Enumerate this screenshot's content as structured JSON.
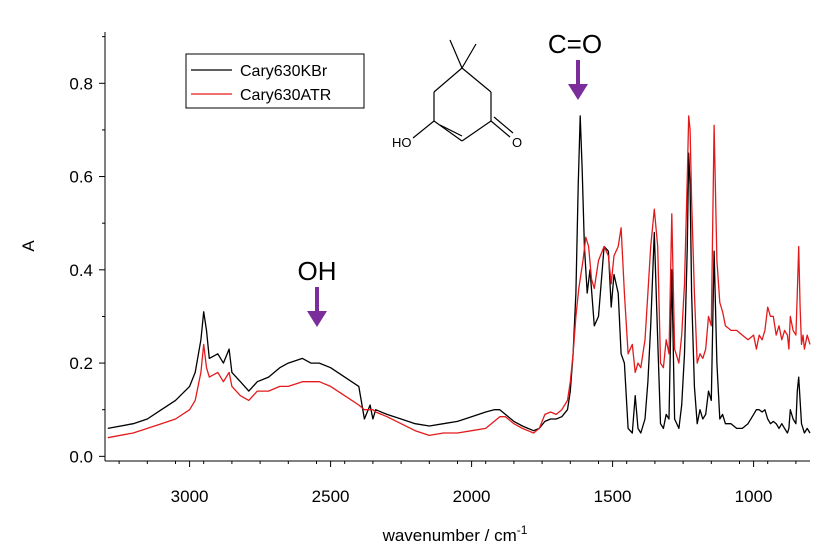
{
  "chart_data": {
    "type": "line",
    "xlabel": "wavenumber / cm",
    "xlabel_superscript": "-1",
    "ylabel": "A",
    "xlim": [
      3300,
      800
    ],
    "ylim": [
      -0.01,
      0.91
    ],
    "x_reversed": true,
    "x_ticks": [
      3000,
      2500,
      2000,
      1500,
      1000
    ],
    "y_ticks": [
      0.0,
      0.2,
      0.4,
      0.6,
      0.8
    ],
    "x_tick_labels": [
      "3000",
      "2500",
      "2000",
      "1500",
      "1000"
    ],
    "y_tick_labels": [
      "0.0",
      "0.2",
      "0.4",
      "0.6",
      "0.8"
    ],
    "grid": false,
    "legend_position": "top-left",
    "series": [
      {
        "name": "Cary630KBr",
        "color": "#000000",
        "x": [
          3290,
          3200,
          3150,
          3100,
          3050,
          3000,
          2980,
          2960,
          2950,
          2940,
          2930,
          2900,
          2880,
          2860,
          2850,
          2820,
          2790,
          2760,
          2720,
          2680,
          2650,
          2600,
          2570,
          2540,
          2500,
          2450,
          2400,
          2380,
          2360,
          2350,
          2340,
          2300,
          2250,
          2200,
          2150,
          2100,
          2050,
          2000,
          1950,
          1920,
          1900,
          1880,
          1850,
          1820,
          1800,
          1780,
          1760,
          1740,
          1720,
          1700,
          1680,
          1660,
          1650,
          1640,
          1630,
          1622,
          1615,
          1608,
          1600,
          1590,
          1580,
          1565,
          1550,
          1530,
          1515,
          1505,
          1495,
          1480,
          1470,
          1458,
          1445,
          1430,
          1420,
          1410,
          1400,
          1385,
          1375,
          1365,
          1352,
          1340,
          1330,
          1320,
          1310,
          1300,
          1290,
          1280,
          1265,
          1255,
          1245,
          1235,
          1230,
          1225,
          1220,
          1210,
          1200,
          1190,
          1180,
          1170,
          1160,
          1150,
          1140,
          1130,
          1120,
          1110,
          1100,
          1080,
          1060,
          1040,
          1020,
          1000,
          990,
          980,
          970,
          960,
          950,
          940,
          930,
          920,
          910,
          900,
          890,
          880,
          875,
          870,
          860,
          850,
          845,
          840,
          835,
          830,
          825,
          820,
          810,
          800
        ],
        "y": [
          0.06,
          0.07,
          0.08,
          0.1,
          0.12,
          0.15,
          0.18,
          0.25,
          0.31,
          0.27,
          0.21,
          0.22,
          0.2,
          0.23,
          0.18,
          0.16,
          0.14,
          0.16,
          0.17,
          0.19,
          0.2,
          0.21,
          0.2,
          0.2,
          0.19,
          0.17,
          0.15,
          0.08,
          0.11,
          0.08,
          0.1,
          0.09,
          0.08,
          0.07,
          0.065,
          0.07,
          0.075,
          0.085,
          0.095,
          0.1,
          0.1,
          0.09,
          0.075,
          0.065,
          0.06,
          0.055,
          0.06,
          0.075,
          0.08,
          0.08,
          0.085,
          0.1,
          0.14,
          0.22,
          0.35,
          0.58,
          0.73,
          0.62,
          0.45,
          0.35,
          0.4,
          0.28,
          0.3,
          0.45,
          0.44,
          0.32,
          0.39,
          0.35,
          0.22,
          0.2,
          0.06,
          0.05,
          0.13,
          0.06,
          0.05,
          0.08,
          0.16,
          0.28,
          0.48,
          0.25,
          0.07,
          0.06,
          0.09,
          0.08,
          0.4,
          0.08,
          0.06,
          0.11,
          0.22,
          0.45,
          0.65,
          0.58,
          0.35,
          0.15,
          0.07,
          0.1,
          0.08,
          0.09,
          0.14,
          0.12,
          0.44,
          0.2,
          0.08,
          0.09,
          0.07,
          0.07,
          0.06,
          0.06,
          0.07,
          0.09,
          0.1,
          0.1,
          0.095,
          0.1,
          0.08,
          0.07,
          0.075,
          0.07,
          0.06,
          0.07,
          0.06,
          0.05,
          0.06,
          0.1,
          0.08,
          0.07,
          0.14,
          0.17,
          0.12,
          0.07,
          0.06,
          0.05,
          0.06,
          0.05
        ]
      },
      {
        "name": "Cary630ATR",
        "color": "#e31a1c",
        "x": [
          3290,
          3200,
          3150,
          3100,
          3050,
          3000,
          2980,
          2960,
          2950,
          2940,
          2930,
          2900,
          2880,
          2860,
          2850,
          2820,
          2790,
          2760,
          2720,
          2680,
          2650,
          2600,
          2570,
          2540,
          2500,
          2450,
          2400,
          2380,
          2360,
          2350,
          2340,
          2300,
          2250,
          2200,
          2150,
          2100,
          2050,
          2000,
          1950,
          1920,
          1900,
          1880,
          1850,
          1820,
          1800,
          1780,
          1760,
          1740,
          1720,
          1700,
          1680,
          1660,
          1650,
          1640,
          1630,
          1620,
          1615,
          1605,
          1595,
          1585,
          1575,
          1565,
          1550,
          1530,
          1515,
          1505,
          1495,
          1480,
          1470,
          1458,
          1445,
          1430,
          1420,
          1410,
          1400,
          1385,
          1375,
          1365,
          1352,
          1340,
          1330,
          1320,
          1310,
          1300,
          1290,
          1280,
          1265,
          1255,
          1245,
          1235,
          1230,
          1225,
          1220,
          1210,
          1200,
          1190,
          1180,
          1170,
          1160,
          1150,
          1140,
          1130,
          1120,
          1110,
          1100,
          1080,
          1060,
          1040,
          1020,
          1000,
          990,
          980,
          970,
          960,
          950,
          940,
          930,
          920,
          910,
          900,
          890,
          880,
          875,
          870,
          860,
          850,
          845,
          840,
          835,
          830,
          825,
          820,
          810,
          800
        ],
        "y": [
          0.04,
          0.05,
          0.06,
          0.07,
          0.08,
          0.1,
          0.12,
          0.18,
          0.24,
          0.19,
          0.17,
          0.18,
          0.16,
          0.18,
          0.15,
          0.13,
          0.12,
          0.14,
          0.14,
          0.15,
          0.15,
          0.16,
          0.16,
          0.16,
          0.15,
          0.13,
          0.11,
          0.1,
          0.1,
          0.1,
          0.095,
          0.085,
          0.07,
          0.055,
          0.045,
          0.05,
          0.05,
          0.055,
          0.06,
          0.075,
          0.085,
          0.085,
          0.07,
          0.06,
          0.055,
          0.05,
          0.06,
          0.09,
          0.095,
          0.09,
          0.1,
          0.12,
          0.16,
          0.22,
          0.3,
          0.36,
          0.38,
          0.42,
          0.47,
          0.45,
          0.38,
          0.36,
          0.42,
          0.45,
          0.43,
          0.37,
          0.43,
          0.45,
          0.49,
          0.35,
          0.22,
          0.24,
          0.18,
          0.2,
          0.19,
          0.25,
          0.35,
          0.45,
          0.53,
          0.45,
          0.2,
          0.19,
          0.25,
          0.22,
          0.52,
          0.23,
          0.2,
          0.26,
          0.37,
          0.6,
          0.73,
          0.7,
          0.55,
          0.35,
          0.2,
          0.22,
          0.21,
          0.23,
          0.3,
          0.28,
          0.71,
          0.42,
          0.33,
          0.31,
          0.28,
          0.27,
          0.27,
          0.26,
          0.25,
          0.26,
          0.23,
          0.26,
          0.25,
          0.27,
          0.32,
          0.3,
          0.3,
          0.26,
          0.28,
          0.25,
          0.27,
          0.26,
          0.23,
          0.3,
          0.27,
          0.26,
          0.35,
          0.45,
          0.32,
          0.24,
          0.26,
          0.23,
          0.26,
          0.24
        ]
      }
    ],
    "annotations": [
      {
        "text": "C=O",
        "arrow_color": "#7b2d9b"
      },
      {
        "text": "OH",
        "arrow_color": "#7b2d9b"
      }
    ],
    "structure_labels": [
      "HO",
      "O"
    ]
  }
}
